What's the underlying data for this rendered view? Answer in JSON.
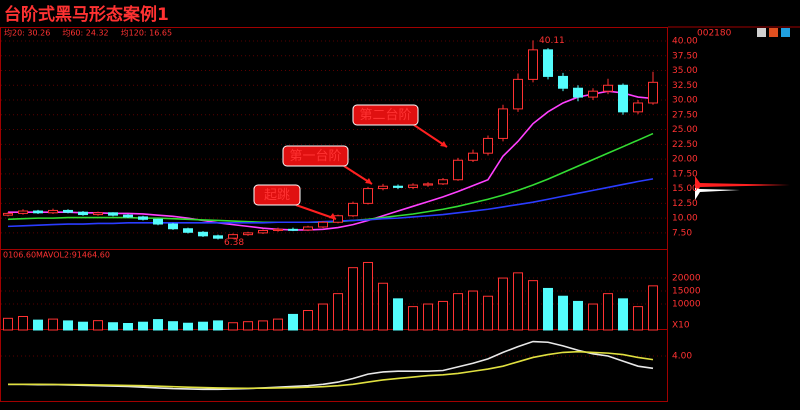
{
  "chart_data": [
    {
      "type": "candlestick",
      "title": "台阶式黑马形态案例1",
      "code": "002180",
      "open": [
        10.5,
        10.8,
        11.2,
        10.9,
        11.3,
        11.0,
        10.6,
        10.9,
        10.5,
        10.2,
        9.8,
        9.0,
        8.2,
        7.6,
        7.0,
        6.6,
        7.2,
        7.5,
        7.9,
        8.1,
        8.0,
        8.5,
        9.3,
        10.4,
        12.5,
        15.0,
        15.4,
        15.2,
        15.6,
        15.8,
        16.5,
        19.8,
        21.0,
        23.5,
        28.5,
        33.5,
        38.5,
        34.0,
        32.0,
        30.5,
        31.5,
        32.5,
        28.0,
        29.5
      ],
      "high": [
        11.0,
        11.5,
        11.4,
        11.6,
        11.5,
        11.2,
        11.1,
        11.0,
        10.7,
        10.4,
        9.9,
        9.2,
        8.4,
        7.8,
        7.2,
        7.4,
        7.7,
        8.1,
        8.4,
        8.4,
        8.7,
        9.5,
        10.6,
        12.8,
        15.3,
        15.8,
        15.7,
        15.9,
        16.1,
        16.8,
        20.2,
        21.6,
        24.0,
        29.2,
        34.5,
        40.11,
        38.8,
        34.6,
        32.5,
        32.0,
        33.6,
        32.8,
        30.0,
        34.8
      ],
      "low": [
        10.3,
        10.6,
        10.7,
        10.7,
        10.8,
        10.4,
        10.4,
        10.3,
        10.0,
        9.6,
        8.8,
        8.0,
        7.4,
        6.8,
        6.38,
        6.5,
        7.0,
        7.3,
        7.7,
        7.8,
        7.8,
        8.3,
        9.1,
        10.2,
        12.3,
        14.7,
        14.9,
        14.9,
        15.3,
        15.6,
        16.3,
        19.5,
        20.6,
        23.0,
        28.0,
        33.0,
        33.5,
        31.5,
        29.8,
        30.0,
        31.0,
        27.5,
        27.6,
        29.2
      ],
      "close": [
        10.8,
        11.2,
        10.9,
        11.3,
        11.0,
        10.6,
        10.9,
        10.5,
        10.2,
        9.8,
        9.0,
        8.2,
        7.6,
        7.0,
        6.6,
        7.2,
        7.5,
        7.9,
        8.1,
        8.0,
        8.5,
        9.3,
        10.4,
        12.5,
        15.0,
        15.4,
        15.2,
        15.6,
        15.8,
        16.5,
        19.8,
        21.0,
        23.5,
        28.5,
        33.5,
        38.5,
        34.0,
        32.0,
        30.5,
        31.5,
        32.5,
        28.0,
        29.5,
        33.0
      ],
      "up_color": "#ff3232",
      "down_color": "#54fcfc",
      "series": [
        {
          "name": "均20: 30.26",
          "color": "#ff40ff",
          "values": [
            11.0,
            11.0,
            11.0,
            11.0,
            11.0,
            10.9,
            10.9,
            10.8,
            10.8,
            10.7,
            10.5,
            10.3,
            10.0,
            9.6,
            9.2,
            8.9,
            8.6,
            8.3,
            8.1,
            8.0,
            8.0,
            8.1,
            8.4,
            8.9,
            9.6,
            10.4,
            11.2,
            12.0,
            12.8,
            13.6,
            14.5,
            15.5,
            16.5,
            20.5,
            23.0,
            26.0,
            28.0,
            29.5,
            30.5,
            31.0,
            31.5,
            31.2,
            30.5,
            30.26
          ]
        },
        {
          "name": "均60: 24.32",
          "color": "#33dd33",
          "values": [
            9.8,
            9.9,
            10.0,
            10.0,
            10.1,
            10.1,
            10.1,
            10.1,
            10.1,
            10.0,
            10.0,
            9.9,
            9.8,
            9.7,
            9.6,
            9.5,
            9.4,
            9.3,
            9.3,
            9.3,
            9.3,
            9.3,
            9.4,
            9.6,
            9.8,
            10.1,
            10.4,
            10.7,
            11.1,
            11.5,
            12.0,
            12.6,
            13.2,
            13.9,
            14.7,
            15.6,
            16.6,
            17.7,
            18.8,
            19.9,
            21.0,
            22.1,
            23.2,
            24.32
          ]
        },
        {
          "name": "均120: 16.65",
          "color": "#2a3cff",
          "values": [
            8.6,
            8.7,
            8.8,
            8.9,
            9.0,
            9.0,
            9.1,
            9.1,
            9.2,
            9.2,
            9.2,
            9.2,
            9.2,
            9.2,
            9.2,
            9.2,
            9.2,
            9.2,
            9.3,
            9.3,
            9.3,
            9.4,
            9.5,
            9.6,
            9.7,
            9.9,
            10.0,
            10.2,
            10.4,
            10.6,
            10.9,
            11.2,
            11.5,
            11.9,
            12.3,
            12.7,
            13.2,
            13.7,
            14.2,
            14.7,
            15.2,
            15.7,
            16.2,
            16.65
          ]
        }
      ],
      "annotations": [
        {
          "text": "起跳"
        },
        {
          "text": "第一台阶"
        },
        {
          "text": "第二台阶"
        }
      ],
      "ylim": [
        4.6,
        42.2
      ],
      "yticks": [
        {
          "value": 40,
          "label": "40.00"
        },
        {
          "value": 37.5,
          "label": "37.50"
        },
        {
          "value": 35,
          "label": "35.00"
        },
        {
          "value": 32.5,
          "label": "32.50"
        },
        {
          "value": 30,
          "label": "30.00"
        },
        {
          "value": 27.5,
          "label": "27.50"
        },
        {
          "value": 25,
          "label": "25.00"
        },
        {
          "value": 22.5,
          "label": "22.50"
        },
        {
          "value": 20,
          "label": "20.00"
        },
        {
          "value": 17.5,
          "label": "17.50"
        },
        {
          "value": 15,
          "label": "15.00"
        },
        {
          "value": 12.5,
          "label": "12.50"
        },
        {
          "value": 10,
          "label": "10.00"
        },
        {
          "value": 7.5,
          "label": "7.50"
        }
      ],
      "grid": true
    },
    {
      "type": "bar",
      "legend": [
        "0106.60",
        "MAVOL2:91464.60"
      ],
      "unit_label": "X10",
      "values": [
        4500,
        5200,
        3800,
        4200,
        3500,
        3000,
        3600,
        2800,
        2500,
        3000,
        4000,
        3200,
        2600,
        3000,
        3500,
        2800,
        3200,
        3500,
        4200,
        6000,
        7500,
        10000,
        14000,
        24000,
        26000,
        18000,
        12000,
        9000,
        10000,
        11000,
        14000,
        15000,
        13000,
        20000,
        22000,
        19000,
        16000,
        13000,
        11000,
        10000,
        14000,
        12000,
        9000,
        17000
      ],
      "ylim": [
        0,
        30800
      ],
      "yticks": [
        20000,
        15000,
        10000
      ],
      "grid": true
    },
    {
      "type": "line",
      "series": [
        {
          "color": "#e8e8e8",
          "values": [
            0.1,
            0.1,
            0.05,
            0.05,
            0,
            -0.05,
            -0.1,
            -0.15,
            -0.2,
            -0.3,
            -0.4,
            -0.5,
            -0.55,
            -0.6,
            -0.6,
            -0.55,
            -0.5,
            -0.4,
            -0.3,
            -0.2,
            -0.1,
            0.1,
            0.4,
            0.9,
            1.5,
            1.8,
            1.9,
            1.9,
            1.9,
            2.0,
            2.5,
            3.0,
            3.6,
            4.5,
            5.3,
            6.0,
            5.9,
            5.4,
            4.8,
            4.3,
            4.0,
            3.3,
            2.6,
            2.3
          ]
        },
        {
          "color": "#e0e040",
          "values": [
            0.1,
            0.1,
            0.1,
            0.08,
            0.06,
            0.04,
            0.01,
            -0.02,
            -0.06,
            -0.1,
            -0.16,
            -0.23,
            -0.3,
            -0.36,
            -0.41,
            -0.44,
            -0.45,
            -0.44,
            -0.41,
            -0.37,
            -0.31,
            -0.23,
            -0.1,
            0.1,
            0.4,
            0.7,
            0.9,
            1.1,
            1.3,
            1.4,
            1.6,
            1.9,
            2.2,
            2.6,
            3.2,
            3.8,
            4.2,
            4.5,
            4.6,
            4.5,
            4.4,
            4.2,
            3.8,
            3.5
          ]
        }
      ],
      "ylim": [
        -2.07,
        7.59
      ],
      "yticks": [
        {
          "value": 4,
          "label": "4.00"
        }
      ],
      "grid": true
    }
  ]
}
